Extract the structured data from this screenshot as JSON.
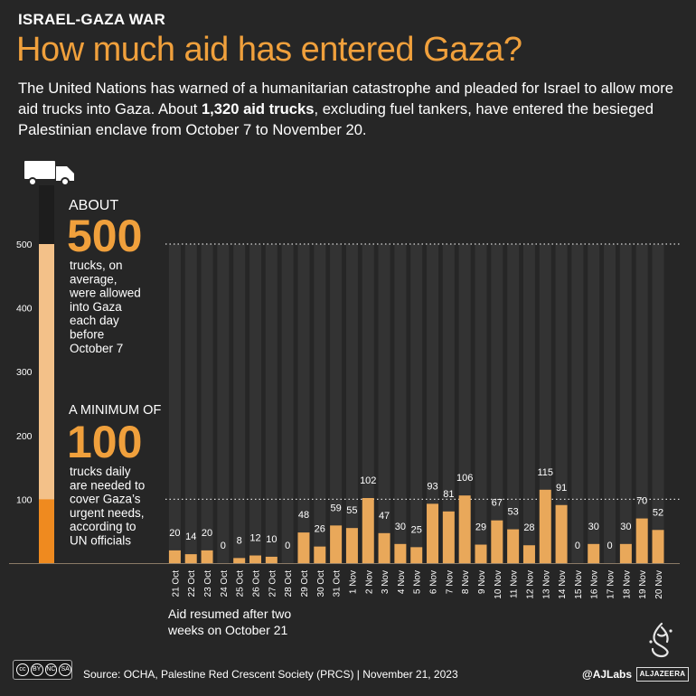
{
  "header": {
    "kicker": "ISRAEL-GAZA WAR",
    "title": "How much aid has entered Gaza?",
    "intro_pre": "The United Nations has warned of a humanitarian catastrophe and pleaded for Israel to allow more aid trucks into Gaza. About ",
    "intro_bold": "1,320 aid trucks",
    "intro_post": ", excluding fuel tankers, have entered the besieged Palestinian enclave from October 7 to November 20."
  },
  "annotations": {
    "about_label": "ABOUT",
    "about_value": "500",
    "about_text": [
      "trucks, on",
      "average,",
      "were allowed",
      "into Gaza",
      "each day",
      "before",
      "October 7"
    ],
    "minimum_label": "A MINIMUM OF",
    "minimum_value": "100",
    "minimum_text": [
      "trucks daily",
      "are needed to",
      "cover Gaza’s",
      "urgent needs,",
      "according to",
      "UN officials"
    ],
    "resumed_text": [
      "Aid resumed after two",
      "weeks on October 21"
    ]
  },
  "footer": {
    "source": "Source:  OCHA, Palestine Red Crescent Society (PRCS)   |   November 21, 2023",
    "handle": "@AJLabs",
    "brand": "ALJAZEERA",
    "license": [
      "cc",
      "BY",
      "NC",
      "SA"
    ]
  },
  "colors": {
    "background": "#262626",
    "accent": "#f0a03c",
    "bar": "#e9a85a",
    "bar_track": "#333333",
    "gauge_light": "#f3c189",
    "gauge_dark": "#ef8a1f"
  },
  "chart_data": {
    "type": "bar",
    "categories": [
      "21 Oct",
      "22 Oct",
      "23 Oct",
      "24 Oct",
      "25 Oct",
      "26 Oct",
      "27 Oct",
      "28 Oct",
      "29 Oct",
      "30 Oct",
      "31 Oct",
      "1 Nov",
      "2 Nov",
      "3 Nov",
      "4 Nov",
      "5 Nov",
      "6 Nov",
      "7 Nov",
      "8 Nov",
      "9 Nov",
      "10 Nov",
      "11 Nov",
      "12 Nov",
      "13 Nov",
      "14 Nov",
      "15 Nov",
      "16 Nov",
      "17 Nov",
      "18 Nov",
      "19 Nov",
      "20 Nov"
    ],
    "values": [
      20,
      14,
      20,
      0,
      8,
      12,
      10,
      0,
      48,
      26,
      59,
      55,
      102,
      47,
      30,
      25,
      93,
      81,
      106,
      29,
      67,
      53,
      28,
      115,
      91,
      0,
      30,
      0,
      30,
      70,
      52
    ],
    "ylim": [
      0,
      500
    ],
    "yticks": [
      100,
      200,
      300,
      400,
      500
    ],
    "reference_lines": [
      500,
      100
    ],
    "gauge": {
      "average_before": 500,
      "minimum_needed": 100
    }
  }
}
